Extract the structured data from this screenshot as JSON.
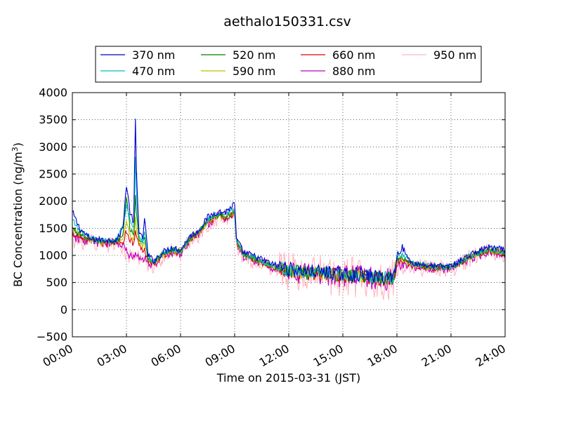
{
  "chart_data": {
    "type": "line",
    "title": "aethalo150331.csv",
    "xlabel": "Time on 2015-03-31 (JST)",
    "ylabel_main": "BC Concentration (ng/m",
    "ylabel_sup": "3",
    "ylabel_end": ")",
    "xlim": [
      0,
      24
    ],
    "ylim": [
      -500,
      4000
    ],
    "grid": true,
    "legend_position": "top, above plot",
    "x_ticks": [
      0,
      3,
      6,
      9,
      12,
      15,
      18,
      21,
      24
    ],
    "x_tick_labels": [
      "00:00",
      "03:00",
      "06:00",
      "09:00",
      "12:00",
      "15:00",
      "18:00",
      "21:00",
      "24:00"
    ],
    "y_ticks": [
      -500,
      0,
      500,
      1000,
      1500,
      2000,
      2500,
      3000,
      3500,
      4000
    ],
    "y_tick_labels": [
      "−500",
      "0",
      "500",
      "1000",
      "1500",
      "2000",
      "2500",
      "3000",
      "3500",
      "4000"
    ],
    "series": [
      {
        "name": "370 nm",
        "color": "#0000cc",
        "noise": 60,
        "x": [
          0,
          0.4,
          1,
          2,
          2.5,
          2.8,
          3.0,
          3.2,
          3.4,
          3.5,
          3.55,
          3.7,
          3.9,
          4.0,
          4.2,
          4.5,
          5,
          5.5,
          6,
          6.5,
          7,
          7.5,
          8,
          8.5,
          9,
          9.1,
          9.5,
          10,
          11,
          12,
          13,
          14,
          15,
          16,
          17,
          17.8,
          18,
          18.3,
          18.7,
          19,
          20,
          21,
          22,
          23,
          24
        ],
        "y": [
          1800,
          1500,
          1300,
          1280,
          1300,
          1500,
          2300,
          1800,
          1600,
          3500,
          2600,
          1400,
          1300,
          1700,
          1000,
          900,
          1050,
          1150,
          1100,
          1350,
          1450,
          1700,
          1800,
          1800,
          1950,
          1300,
          1050,
          1000,
          850,
          750,
          700,
          700,
          650,
          650,
          600,
          600,
          1000,
          1150,
          900,
          850,
          800,
          800,
          1000,
          1150,
          1100
        ]
      },
      {
        "name": "470 nm",
        "color": "#00bfbf",
        "noise": 55,
        "x": [
          0,
          0.4,
          1,
          2,
          2.5,
          2.8,
          3.0,
          3.2,
          3.4,
          3.5,
          3.55,
          3.7,
          3.9,
          4.0,
          4.2,
          4.5,
          5,
          5.5,
          6,
          6.5,
          7,
          7.5,
          8,
          8.5,
          9,
          9.1,
          9.5,
          10,
          11,
          12,
          13,
          14,
          15,
          16,
          17,
          17.8,
          18,
          18.3,
          18.7,
          19,
          20,
          21,
          22,
          23,
          24
        ],
        "y": [
          1650,
          1450,
          1300,
          1260,
          1300,
          1550,
          1900,
          1650,
          1500,
          2800,
          2200,
          1350,
          1250,
          1450,
          980,
          880,
          1030,
          1120,
          1080,
          1330,
          1430,
          1650,
          1750,
          1750,
          1850,
          1280,
          1030,
          980,
          830,
          730,
          690,
          690,
          640,
          640,
          590,
          590,
          950,
          1050,
          880,
          840,
          790,
          790,
          980,
          1120,
          1080
        ]
      },
      {
        "name": "520 nm",
        "color": "#007f00",
        "noise": 55,
        "x": [
          0,
          0.4,
          1,
          2,
          2.5,
          2.8,
          3.0,
          3.2,
          3.4,
          3.5,
          3.55,
          3.7,
          3.9,
          4.0,
          4.2,
          4.5,
          5,
          5.5,
          6,
          6.5,
          7,
          7.5,
          8,
          8.5,
          9,
          9.1,
          9.5,
          10,
          11,
          12,
          13,
          14,
          15,
          16,
          17,
          17.8,
          18,
          18.3,
          18.7,
          19,
          20,
          21,
          22,
          23,
          24
        ],
        "y": [
          1500,
          1400,
          1280,
          1250,
          1280,
          1350,
          2050,
          1500,
          1350,
          2100,
          1800,
          1300,
          1200,
          1350,
          950,
          870,
          1010,
          1100,
          1060,
          1310,
          1420,
          1620,
          1720,
          1720,
          1800,
          1260,
          1010,
          960,
          820,
          720,
          680,
          680,
          630,
          630,
          580,
          580,
          900,
          980,
          870,
          830,
          780,
          780,
          970,
          1100,
          1060
        ]
      },
      {
        "name": "590 nm",
        "color": "#bfbf00",
        "noise": 55,
        "x": [
          0,
          0.4,
          1,
          2,
          2.5,
          2.8,
          3.0,
          3.2,
          3.4,
          3.5,
          3.55,
          3.7,
          3.9,
          4.0,
          4.2,
          4.5,
          5,
          5.5,
          6,
          6.5,
          7,
          7.5,
          8,
          8.5,
          9,
          9.1,
          9.5,
          10,
          11,
          12,
          13,
          14,
          15,
          16,
          17,
          17.8,
          18,
          18.3,
          18.7,
          19,
          20,
          21,
          22,
          23,
          24
        ],
        "y": [
          1450,
          1380,
          1270,
          1240,
          1270,
          1300,
          1650,
          1400,
          1250,
          1700,
          1500,
          1250,
          1150,
          1250,
          930,
          860,
          1000,
          1090,
          1050,
          1300,
          1410,
          1610,
          1710,
          1710,
          1780,
          1250,
          1000,
          950,
          810,
          715,
          675,
          675,
          625,
          625,
          575,
          575,
          870,
          950,
          860,
          820,
          775,
          775,
          965,
          1090,
          1050
        ]
      },
      {
        "name": "660 nm",
        "color": "#dd0000",
        "noise": 60,
        "x": [
          0,
          0.4,
          1,
          2,
          2.5,
          2.8,
          3.0,
          3.2,
          3.4,
          3.5,
          3.55,
          3.7,
          3.9,
          4.0,
          4.2,
          4.5,
          5,
          5.5,
          6,
          6.5,
          7,
          7.5,
          8,
          8.5,
          9,
          9.1,
          9.5,
          10,
          11,
          12,
          13,
          14,
          15,
          16,
          17,
          17.8,
          18,
          18.3,
          18.7,
          19,
          20,
          21,
          22,
          23,
          24
        ],
        "y": [
          1400,
          1350,
          1260,
          1230,
          1260,
          1250,
          1450,
          1300,
          1200,
          1450,
          1350,
          1200,
          1100,
          1150,
          910,
          850,
          990,
          1080,
          1040,
          1290,
          1400,
          1600,
          1700,
          1700,
          1760,
          1240,
          990,
          940,
          800,
          710,
          670,
          670,
          620,
          620,
          570,
          570,
          850,
          920,
          850,
          810,
          770,
          770,
          960,
          1080,
          1040
        ]
      },
      {
        "name": "880 nm",
        "color": "#bf00bf",
        "noise": 95,
        "x": [
          0,
          0.4,
          1,
          2,
          2.5,
          2.8,
          3.0,
          3.2,
          3.4,
          3.5,
          3.55,
          3.7,
          3.9,
          4.0,
          4.2,
          4.5,
          5,
          5.5,
          6,
          6.5,
          7,
          7.5,
          8,
          8.5,
          9,
          9.1,
          9.5,
          10,
          11,
          12,
          13,
          14,
          15,
          16,
          17,
          17.8,
          18,
          18.3,
          18.7,
          19,
          20,
          21,
          22,
          23,
          24
        ],
        "y": [
          1350,
          1300,
          1250,
          1220,
          1250,
          1200,
          1050,
          1000,
          950,
          1050,
          1000,
          950,
          900,
          950,
          880,
          840,
          980,
          1070,
          1030,
          1280,
          1390,
          1600,
          1700,
          1700,
          1750,
          1230,
          980,
          930,
          790,
          700,
          660,
          660,
          610,
          610,
          560,
          560,
          800,
          850,
          840,
          800,
          760,
          760,
          950,
          1070,
          1030
        ]
      },
      {
        "name": "950 nm",
        "color": "#ffb6c1",
        "noise": 170,
        "x": [
          0,
          0.4,
          1,
          2,
          2.5,
          2.8,
          3.0,
          3.2,
          3.4,
          3.5,
          3.55,
          3.7,
          3.9,
          4.0,
          4.2,
          4.5,
          5,
          5.5,
          6,
          6.5,
          7,
          7.5,
          8,
          8.5,
          9,
          9.1,
          9.5,
          10,
          11,
          12,
          13,
          14,
          15,
          16,
          17,
          17.8,
          18,
          18.3,
          18.7,
          19,
          20,
          21,
          22,
          23,
          24
        ],
        "y": [
          1300,
          1280,
          1240,
          1210,
          1240,
          1180,
          1000,
          950,
          920,
          1000,
          960,
          920,
          880,
          920,
          870,
          830,
          970,
          1060,
          1020,
          1270,
          1380,
          1590,
          1690,
          1690,
          1740,
          1220,
          970,
          920,
          780,
          690,
          650,
          650,
          600,
          600,
          550,
          550,
          780,
          820,
          830,
          790,
          750,
          750,
          940,
          1060,
          1020
        ]
      }
    ]
  }
}
